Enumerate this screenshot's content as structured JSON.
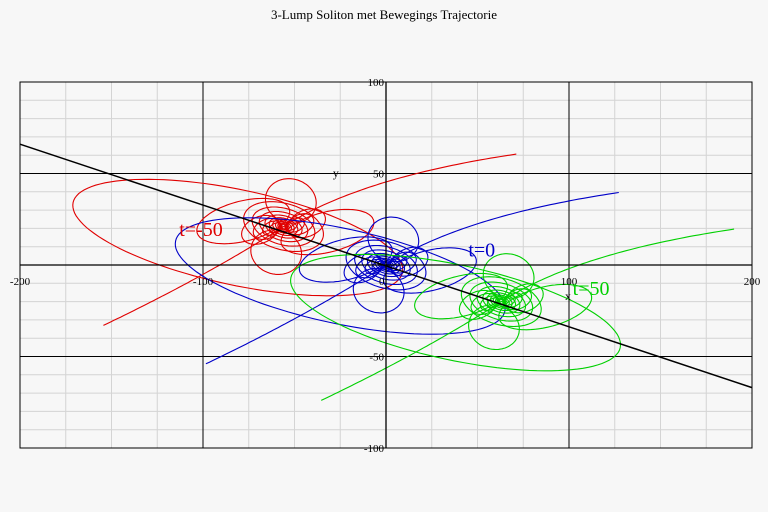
{
  "chart_data": {
    "type": "line",
    "title": "3-Lump Soliton met Bewegings Trajectorie",
    "xlabel": "x",
    "ylabel": "y",
    "xlim": [
      -200,
      200
    ],
    "ylim": [
      -100,
      100
    ],
    "grid": true,
    "x_ticks": [
      {
        "value": -200,
        "label": "-200"
      },
      {
        "value": -100,
        "label": "-100"
      },
      {
        "value": 0,
        "label": "0"
      },
      {
        "value": 100,
        "label": "100"
      },
      {
        "value": 200,
        "label": "200"
      }
    ],
    "y_ticks": [
      {
        "value": 100,
        "label": "100"
      },
      {
        "value": 50,
        "label": "50"
      },
      {
        "value": 0,
        "label": "0"
      },
      {
        "value": -50,
        "label": "-50"
      },
      {
        "value": -100,
        "label": "-100"
      }
    ],
    "trajectory": {
      "color": "#000000",
      "points": [
        [
          -200,
          66
        ],
        [
          200,
          -67
        ]
      ]
    },
    "lumps": [
      {
        "label": "t=-50",
        "color": "#e00000",
        "center": [
          -56,
          21
        ],
        "label_pos": [
          -113,
          19
        ],
        "tilt_deg": -16
      },
      {
        "label": "t=0",
        "color": "#0000c8",
        "center": [
          0,
          0
        ],
        "label_pos": [
          45,
          8
        ],
        "tilt_deg": -16
      },
      {
        "label": "t=50",
        "color": "#00d000",
        "center": [
          63,
          -20
        ],
        "label_pos": [
          102,
          -13
        ],
        "tilt_deg": -16
      }
    ]
  }
}
